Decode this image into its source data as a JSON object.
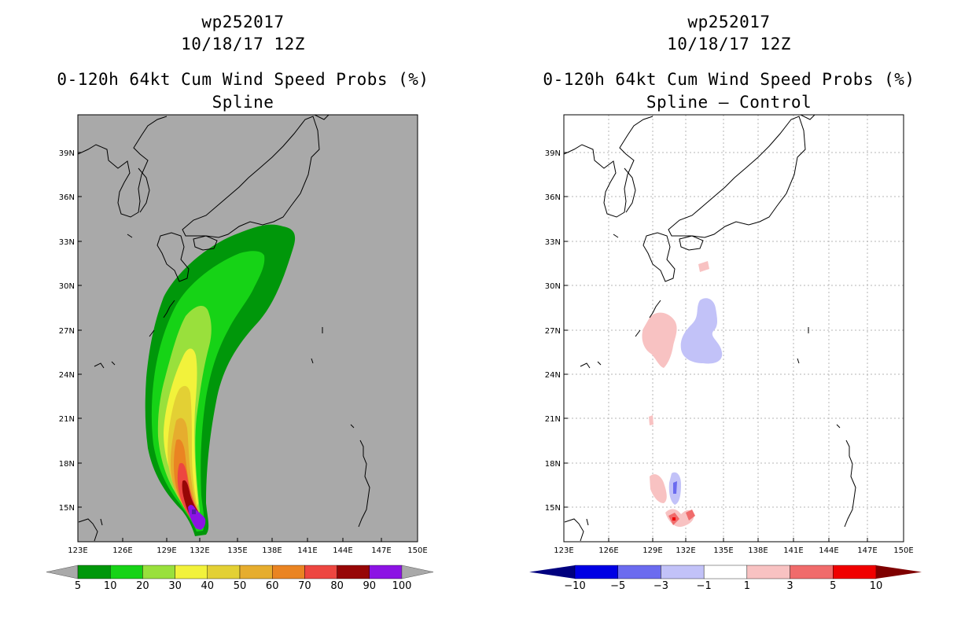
{
  "panels": [
    {
      "line1": "wp252017",
      "line2": "10/18/17 12Z",
      "line3": "0-120h 64kt Cum Wind Speed Probs (%)",
      "line4": "Spline",
      "background_color": "#a9a9a9"
    },
    {
      "line1": "wp252017",
      "line2": "10/18/17 12Z",
      "line3": "0-120h 64kt Cum Wind Speed Probs (%)",
      "line4": "Spline – Control",
      "background_color": "#ffffff"
    }
  ],
  "lat_ticks": [
    "15N",
    "18N",
    "21N",
    "24N",
    "27N",
    "30N",
    "33N",
    "36N",
    "39N"
  ],
  "lon_ticks": [
    "123E",
    "126E",
    "129E",
    "132E",
    "135E",
    "138E",
    "141E",
    "144E",
    "147E",
    "150E"
  ],
  "colorbar_left": {
    "labels": [
      "5",
      "10",
      "20",
      "30",
      "40",
      "50",
      "60",
      "70",
      "80",
      "90",
      "100"
    ],
    "colors": [
      "#00970a",
      "#16d316",
      "#99e03c",
      "#f2f23b",
      "#e3d034",
      "#e6ad2e",
      "#ea8422",
      "#ed4640",
      "#970606",
      "#8c13e4"
    ],
    "end_color": "#a9a9a9"
  },
  "colorbar_right": {
    "labels": [
      "−10",
      "−5",
      "−3",
      "−1",
      "1",
      "3",
      "5",
      "10"
    ],
    "colors": [
      "#0000e4",
      "#6b6bef",
      "#c2c2f8",
      "#ffffff",
      "#f8c2c2",
      "#f06b6b",
      "#f00000"
    ],
    "low_color": "#00007f",
    "high_color": "#7f0000"
  }
}
